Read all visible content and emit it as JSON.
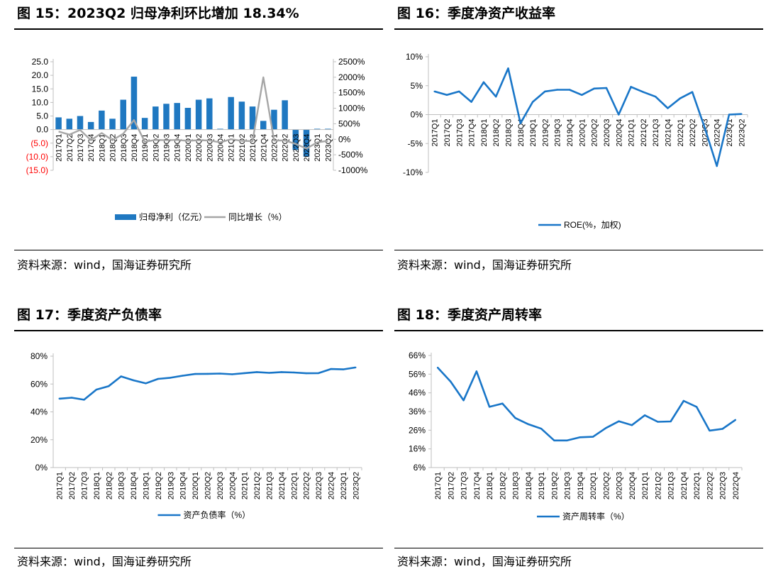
{
  "colors": {
    "blue": "#1f78c1",
    "line_blue": "#1976c8",
    "gray": "#a6a6a6",
    "neg": "#ff0000",
    "axis": "#bfbfbf"
  },
  "panels": [
    {
      "title": "图 15：2023Q2 归母净利环比增加 18.34%",
      "source": "资料来源：wind，国海证券研究所"
    },
    {
      "title": "图 16：季度净资产收益率",
      "source": "资料来源：wind，国海证券研究所"
    },
    {
      "title": "图 17：季度资产负债率",
      "source": "资料来源：wind，国海证券研究所"
    },
    {
      "title": "图 18：季度资产周转率",
      "source": "资料来源：wind，国海证券研究所"
    }
  ],
  "chart_data": [
    {
      "type": "bar+line",
      "categories": [
        "2017Q1",
        "2017Q2",
        "2017Q3",
        "2017Q4",
        "2018Q1",
        "2018Q2",
        "2018Q3",
        "2018Q4",
        "2019Q1",
        "2019Q2",
        "2019Q3",
        "2019Q4",
        "2020Q1",
        "2020Q2",
        "2020Q3",
        "2020Q4",
        "2021Q1",
        "2021Q2",
        "2021Q3",
        "2021Q4",
        "2022Q1",
        "2022Q2",
        "2022Q3",
        "2022Q4",
        "2023Q1",
        "2023Q2"
      ],
      "series": [
        {
          "name": "归母净利（亿元）",
          "kind": "bar",
          "axis": "left",
          "values": [
            4.5,
            4.0,
            5.0,
            2.8,
            7.0,
            4.0,
            11.0,
            19.5,
            4.3,
            8.5,
            9.5,
            9.8,
            8.0,
            11.0,
            11.5,
            0.3,
            12.0,
            10.3,
            8.5,
            3.2,
            7.3,
            10.8,
            -7.5,
            -10.0,
            0.3,
            0.3
          ]
        },
        {
          "name": "同比增长（%）",
          "kind": "line",
          "axis": "right",
          "values": [
            250,
            150,
            300,
            -30,
            200,
            -30,
            180,
            620,
            -80,
            -20,
            -30,
            -20,
            -50,
            -30,
            -40,
            -100,
            1,
            -50,
            -60,
            2000,
            -40,
            -40,
            -150,
            -300,
            -100,
            -50
          ]
        }
      ],
      "left_ticks": [
        "25.0",
        "20.0",
        "15.0",
        "10.0",
        "5.0",
        "0.0",
        "(5.0)",
        "(10.0)",
        "(15.0)"
      ],
      "right_ticks": [
        "2500%",
        "2000%",
        "1500%",
        "1000%",
        "500%",
        "0%",
        "-500%",
        "-1000%"
      ],
      "ylim_left": [
        -15,
        25
      ],
      "ylim_right": [
        -1000,
        2500
      ]
    },
    {
      "type": "line",
      "categories": [
        "2017Q1",
        "2017Q2",
        "2017Q3",
        "2017Q4",
        "2018Q1",
        "2018Q2",
        "2018Q3",
        "2018Q4",
        "2019Q1",
        "2019Q2",
        "2019Q3",
        "2019Q4",
        "2020Q1",
        "2020Q2",
        "2020Q3",
        "2020Q4",
        "2021Q1",
        "2021Q2",
        "2021Q3",
        "2021Q4",
        "2022Q1",
        "2022Q2",
        "2022Q3",
        "2022Q4",
        "2023Q1",
        "2023Q2"
      ],
      "series": [
        {
          "name": "ROE(%，加权)",
          "values": [
            4.0,
            3.4,
            4.0,
            2.2,
            5.6,
            3.1,
            8.0,
            -1.5,
            2.2,
            4.0,
            4.3,
            4.3,
            3.4,
            4.5,
            4.6,
            0.0,
            4.8,
            3.9,
            3.1,
            1.1,
            2.8,
            3.9,
            -2.2,
            -8.9,
            0.0,
            0.1
          ]
        }
      ],
      "y_ticks": [
        "10%",
        "5%",
        "0%",
        "-5%",
        "-10%"
      ],
      "ylim": [
        -10,
        10
      ]
    },
    {
      "type": "line",
      "categories": [
        "2017Q1",
        "2017Q2",
        "2017Q3",
        "2018Q1",
        "2018Q2",
        "2018Q3",
        "2018Q4",
        "2019Q1",
        "2019Q2",
        "2019Q3",
        "2019Q4",
        "2020Q1",
        "2020Q2",
        "2020Q3",
        "2020Q4",
        "2021Q1",
        "2021Q2",
        "2021Q3",
        "2021Q4",
        "2022Q1",
        "2022Q2",
        "2022Q3",
        "2022Q4",
        "2023Q1",
        "2023Q2"
      ],
      "series": [
        {
          "name": "资产负债率（%）",
          "values": [
            49.5,
            50.2,
            48.7,
            56.0,
            58.5,
            65.5,
            62.7,
            60.5,
            63.7,
            64.5,
            66.0,
            67.2,
            67.3,
            67.5,
            67.0,
            67.8,
            68.6,
            68.0,
            68.6,
            68.3,
            67.7,
            67.8,
            70.8,
            70.5,
            71.9
          ]
        }
      ],
      "y_ticks": [
        "80%",
        "60%",
        "40%",
        "20%",
        "0%"
      ],
      "ylim": [
        0,
        80
      ]
    },
    {
      "type": "line",
      "categories": [
        "2017Q1",
        "2017Q2",
        "2017Q3",
        "2017Q4",
        "2018Q1",
        "2018Q2",
        "2018Q3",
        "2018Q4",
        "2019Q1",
        "2019Q2",
        "2019Q3",
        "2019Q4",
        "2020Q1",
        "2020Q2",
        "2020Q3",
        "2020Q4",
        "2021Q1",
        "2021Q2",
        "2021Q3",
        "2021Q4",
        "2022Q1",
        "2022Q2",
        "2022Q3",
        "2022Q4"
      ],
      "series": [
        {
          "name": "资产周转率（%）",
          "values": [
            59.5,
            52,
            42,
            57.5,
            38.5,
            40.3,
            32.5,
            29.2,
            26.8,
            20.5,
            20.5,
            22.2,
            22.5,
            27.2,
            30.8,
            28.7,
            34.0,
            30.5,
            30.7,
            41.7,
            38.5,
            25.8,
            26.7,
            31.5
          ]
        }
      ],
      "y_ticks": [
        "66%",
        "56%",
        "46%",
        "36%",
        "26%",
        "16%",
        "6%"
      ],
      "ylim": [
        6,
        66
      ]
    }
  ]
}
